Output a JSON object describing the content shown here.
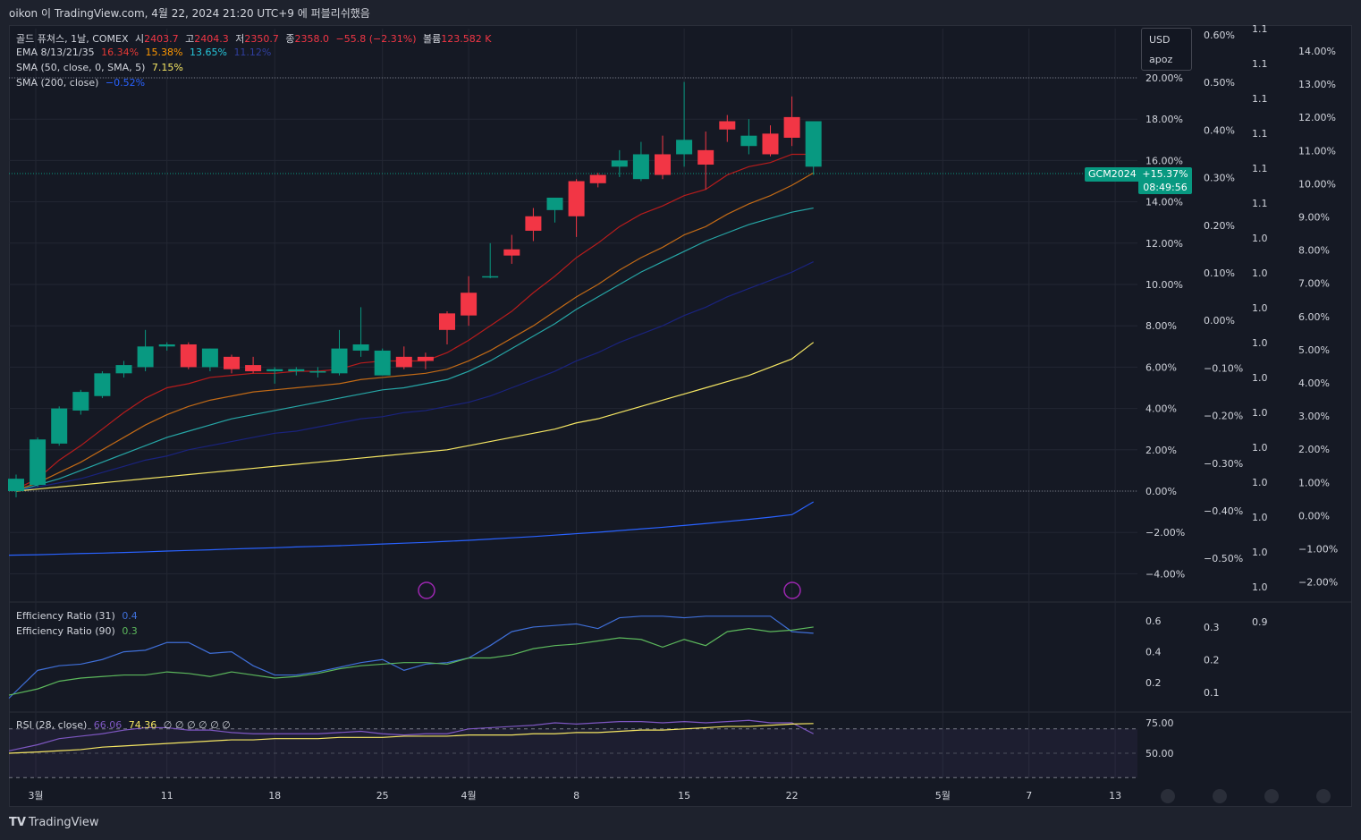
{
  "header": {
    "author_line": "oikon 이 TradingView.com, 4월 22, 2024 21:20 UTC+9 에 퍼블리쉬했음"
  },
  "legend": {
    "symbol": "골드 퓨쳐스, 1날, COMEX",
    "o_label": "시",
    "o": "2403.7",
    "h_label": "고",
    "h": "2404.3",
    "l_label": "저",
    "l": "2350.7",
    "c_label": "종",
    "c": "2358.0",
    "chg": "−55.8 (−2.31%)",
    "vol_label": "볼륨",
    "vol": "123.582 K",
    "ema_label": "EMA 8/13/21/35",
    "ema_vals": [
      "16.34%",
      "15.38%",
      "13.65%",
      "11.12%"
    ],
    "sma50_label": "SMA (50, close, 0, SMA, 5)",
    "sma50_val": "7.15%",
    "sma200_label": "SMA (200, close)",
    "sma200_val": "−0.52%",
    "er31_label": "Efficiency Ratio (31)",
    "er31_val": "0.4",
    "er90_label": "Efficiency Ratio (90)",
    "er90_val": "0.3",
    "rsi_label": "RSI (28, close)",
    "rsi_val": "66.06",
    "rsi_ma": "74.36",
    "rsi_extra": "∅ ∅ ∅ ∅ ∅ ∅"
  },
  "currency_box": {
    "currency": "USD",
    "name": "apoz"
  },
  "price_tag": {
    "symbol": "GCM2024",
    "value": "+15.37%",
    "countdown": "08:49:56"
  },
  "colors": {
    "up": "#089981",
    "down": "#f23645",
    "ema8": "#b71c1c",
    "ema13": "#c26a16",
    "ema21": "#26a6a6",
    "ema35": "#1a237e",
    "sma50": "#f5e663",
    "sma200": "#2962ff",
    "er31": "#3f6fd8",
    "er90": "#5cb85c",
    "rsi": "#7e57c2",
    "rsi_ma": "#f5e663"
  },
  "bottom": {
    "logo": "TradingView"
  },
  "chart_data": [
    {
      "type": "candlestick",
      "title": "골드 퓨쳐스, 1날, COMEX",
      "x_ticks": [
        "3월",
        "11",
        "18",
        "25",
        "4월",
        "8",
        "15",
        "22",
        "5월",
        "7",
        "13"
      ],
      "right_axis_1": [
        "20.00%",
        "18.00%",
        "16.00%",
        "14.00%",
        "12.00%",
        "10.00%",
        "8.00%",
        "6.00%",
        "4.00%",
        "2.00%",
        "0.00%",
        "−2.00%",
        "−4.00%"
      ],
      "right_axis_2": [
        "0.60%",
        "0.50%",
        "0.40%",
        "0.30%",
        "0.20%",
        "0.10%",
        "0.00%",
        "−0.10%",
        "−0.20%",
        "−0.30%",
        "−0.40%",
        "−0.50%"
      ],
      "right_axis_3": [
        "1.1",
        "1.1",
        "1.1",
        "1.1",
        "1.1",
        "1.1",
        "1.0",
        "1.0",
        "1.0",
        "1.0",
        "1.0",
        "1.0",
        "1.0",
        "1.0",
        "1.0",
        "1.0",
        "1.0",
        "0.9"
      ],
      "right_axis_4": [
        "14.00%",
        "13.00%",
        "12.00%",
        "11.00%",
        "10.00%",
        "9.00%",
        "8.00%",
        "7.00%",
        "6.00%",
        "5.00%",
        "4.00%",
        "3.00%",
        "2.00%",
        "1.00%",
        "0.00%",
        "−1.00%",
        "−2.00%"
      ],
      "ylim": [
        -4.5,
        21
      ],
      "candles": [
        {
          "o": 0.0,
          "h": 0.8,
          "l": -0.3,
          "c": 0.6
        },
        {
          "o": 0.3,
          "h": 2.6,
          "l": 0.2,
          "c": 2.5
        },
        {
          "o": 2.3,
          "h": 4.1,
          "l": 2.2,
          "c": 4.0
        },
        {
          "o": 3.9,
          "h": 4.9,
          "l": 3.7,
          "c": 4.8
        },
        {
          "o": 4.6,
          "h": 5.8,
          "l": 4.5,
          "c": 5.7
        },
        {
          "o": 5.7,
          "h": 6.3,
          "l": 5.5,
          "c": 6.1
        },
        {
          "o": 6.0,
          "h": 7.8,
          "l": 5.8,
          "c": 7.0
        },
        {
          "o": 7.0,
          "h": 7.2,
          "l": 6.8,
          "c": 7.1
        },
        {
          "o": 7.1,
          "h": 7.2,
          "l": 5.9,
          "c": 6.0
        },
        {
          "o": 6.0,
          "h": 6.9,
          "l": 5.8,
          "c": 6.9
        },
        {
          "o": 6.5,
          "h": 6.6,
          "l": 5.7,
          "c": 5.9
        },
        {
          "o": 6.1,
          "h": 6.5,
          "l": 5.7,
          "c": 5.8
        },
        {
          "o": 5.8,
          "h": 6.0,
          "l": 5.2,
          "c": 5.9
        },
        {
          "o": 5.8,
          "h": 6.0,
          "l": 5.6,
          "c": 5.9
        },
        {
          "o": 5.8,
          "h": 6.0,
          "l": 5.5,
          "c": 5.8
        },
        {
          "o": 5.7,
          "h": 7.8,
          "l": 5.6,
          "c": 6.9
        },
        {
          "o": 6.8,
          "h": 8.9,
          "l": 6.5,
          "c": 7.1
        },
        {
          "o": 5.6,
          "h": 6.9,
          "l": 5.6,
          "c": 6.8
        },
        {
          "o": 6.5,
          "h": 7.0,
          "l": 5.9,
          "c": 6.0
        },
        {
          "o": 6.5,
          "h": 6.7,
          "l": 5.9,
          "c": 6.3
        },
        {
          "o": 8.6,
          "h": 8.7,
          "l": 7.1,
          "c": 7.8
        },
        {
          "o": 9.6,
          "h": 10.4,
          "l": 8.0,
          "c": 8.5
        },
        {
          "o": 10.4,
          "h": 12.0,
          "l": 10.3,
          "c": 10.4
        },
        {
          "o": 11.7,
          "h": 12.4,
          "l": 11.0,
          "c": 11.4
        },
        {
          "o": 13.3,
          "h": 13.7,
          "l": 12.1,
          "c": 12.6
        },
        {
          "o": 13.6,
          "h": 14.1,
          "l": 13.0,
          "c": 14.2
        },
        {
          "o": 15.0,
          "h": 15.1,
          "l": 12.3,
          "c": 13.3
        },
        {
          "o": 15.3,
          "h": 15.4,
          "l": 14.7,
          "c": 14.9
        },
        {
          "o": 15.7,
          "h": 16.5,
          "l": 15.2,
          "c": 16.0
        },
        {
          "o": 15.1,
          "h": 16.9,
          "l": 15.0,
          "c": 16.3
        },
        {
          "o": 16.3,
          "h": 17.2,
          "l": 15.1,
          "c": 15.3
        },
        {
          "o": 16.3,
          "h": 19.8,
          "l": 15.7,
          "c": 17.0
        },
        {
          "o": 16.5,
          "h": 17.4,
          "l": 14.6,
          "c": 15.8
        },
        {
          "o": 17.9,
          "h": 18.2,
          "l": 16.9,
          "c": 17.5
        },
        {
          "o": 16.7,
          "h": 18.0,
          "l": 16.3,
          "c": 17.2
        },
        {
          "o": 17.3,
          "h": 17.7,
          "l": 16.2,
          "c": 16.3
        },
        {
          "o": 18.1,
          "h": 19.1,
          "l": 16.7,
          "c": 17.1
        },
        {
          "o": 15.7,
          "h": 17.8,
          "l": 15.3,
          "c": 17.9
        }
      ],
      "series": [
        {
          "name": "EMA 8",
          "values": [
            0.1,
            0.6,
            1.5,
            2.2,
            3.0,
            3.8,
            4.5,
            5.0,
            5.2,
            5.5,
            5.6,
            5.7,
            5.7,
            5.8,
            5.8,
            5.9,
            6.2,
            6.3,
            6.3,
            6.3,
            6.7,
            7.3,
            8.0,
            8.7,
            9.6,
            10.4,
            11.3,
            12.0,
            12.8,
            13.4,
            13.8,
            14.3,
            14.6,
            15.3,
            15.7,
            15.9,
            16.3,
            16.3
          ]
        },
        {
          "name": "EMA 13",
          "values": [
            0.05,
            0.4,
            0.9,
            1.4,
            2.0,
            2.6,
            3.2,
            3.7,
            4.1,
            4.4,
            4.6,
            4.8,
            4.9,
            5.0,
            5.1,
            5.2,
            5.4,
            5.5,
            5.6,
            5.7,
            5.9,
            6.3,
            6.8,
            7.4,
            8.0,
            8.7,
            9.4,
            10.0,
            10.7,
            11.3,
            11.8,
            12.4,
            12.8,
            13.4,
            13.9,
            14.3,
            14.8,
            15.4
          ]
        },
        {
          "name": "EMA 21",
          "values": [
            0.0,
            0.3,
            0.6,
            1.0,
            1.4,
            1.8,
            2.2,
            2.6,
            2.9,
            3.2,
            3.5,
            3.7,
            3.9,
            4.1,
            4.3,
            4.5,
            4.7,
            4.9,
            5.0,
            5.2,
            5.4,
            5.8,
            6.3,
            6.9,
            7.5,
            8.1,
            8.8,
            9.4,
            10.0,
            10.6,
            11.1,
            11.6,
            12.1,
            12.5,
            12.9,
            13.2,
            13.5,
            13.7
          ]
        },
        {
          "name": "EMA 35",
          "values": [
            0.0,
            0.2,
            0.4,
            0.6,
            0.9,
            1.2,
            1.5,
            1.7,
            2.0,
            2.2,
            2.4,
            2.6,
            2.8,
            2.9,
            3.1,
            3.3,
            3.5,
            3.6,
            3.8,
            3.9,
            4.1,
            4.3,
            4.6,
            5.0,
            5.4,
            5.8,
            6.3,
            6.7,
            7.2,
            7.6,
            8.0,
            8.5,
            8.9,
            9.4,
            9.8,
            10.2,
            10.6,
            11.1
          ]
        },
        {
          "name": "SMA 50",
          "values": [
            0.0,
            0.1,
            0.2,
            0.3,
            0.4,
            0.5,
            0.6,
            0.7,
            0.8,
            0.9,
            1.0,
            1.1,
            1.2,
            1.3,
            1.4,
            1.5,
            1.6,
            1.7,
            1.8,
            1.9,
            2.0,
            2.2,
            2.4,
            2.6,
            2.8,
            3.0,
            3.3,
            3.5,
            3.8,
            4.1,
            4.4,
            4.7,
            5.0,
            5.3,
            5.6,
            6.0,
            6.4,
            7.2
          ]
        },
        {
          "name": "SMA 200",
          "values": [
            -3.1,
            -3.08,
            -3.05,
            -3.02,
            -3.0,
            -2.97,
            -2.94,
            -2.9,
            -2.87,
            -2.84,
            -2.8,
            -2.77,
            -2.74,
            -2.7,
            -2.67,
            -2.64,
            -2.6,
            -2.56,
            -2.52,
            -2.48,
            -2.43,
            -2.38,
            -2.32,
            -2.26,
            -2.2,
            -2.13,
            -2.06,
            -1.99,
            -1.91,
            -1.83,
            -1.75,
            -1.66,
            -1.57,
            -1.47,
            -1.37,
            -1.26,
            -1.14,
            -0.52
          ]
        }
      ]
    },
    {
      "type": "line",
      "title": "Efficiency Ratio",
      "y_ticks": [
        "0.6",
        "0.4",
        "0.2"
      ],
      "y_ticks_right": [
        "0.3",
        "0.2",
        "0.1"
      ],
      "ylim": [
        0.08,
        0.68
      ],
      "series": [
        {
          "name": "Efficiency Ratio (31)",
          "values": [
            0.1,
            0.28,
            0.31,
            0.32,
            0.35,
            0.4,
            0.41,
            0.46,
            0.46,
            0.39,
            0.4,
            0.31,
            0.25,
            0.25,
            0.27,
            0.3,
            0.33,
            0.35,
            0.28,
            0.32,
            0.33,
            0.36,
            0.44,
            0.53,
            0.56,
            0.57,
            0.58,
            0.55,
            0.62,
            0.63,
            0.63,
            0.62,
            0.63,
            0.63,
            0.63,
            0.63,
            0.53,
            0.52
          ]
        },
        {
          "name": "Efficiency Ratio (90)",
          "values": [
            0.12,
            0.16,
            0.21,
            0.23,
            0.24,
            0.25,
            0.25,
            0.27,
            0.26,
            0.24,
            0.27,
            0.25,
            0.23,
            0.24,
            0.26,
            0.29,
            0.31,
            0.32,
            0.33,
            0.33,
            0.32,
            0.36,
            0.36,
            0.38,
            0.42,
            0.44,
            0.45,
            0.47,
            0.49,
            0.48,
            0.43,
            0.48,
            0.44,
            0.53,
            0.55,
            0.53,
            0.54,
            0.56
          ]
        }
      ]
    },
    {
      "type": "line",
      "title": "RSI (28, close)",
      "y_ticks": [
        "75.00",
        "50.00"
      ],
      "ylim": [
        30,
        85
      ],
      "series": [
        {
          "name": "RSI",
          "values": [
            52,
            57,
            62,
            64,
            66,
            69,
            71,
            71,
            69,
            69,
            67,
            66,
            66,
            66,
            66,
            67,
            68,
            66,
            65,
            66,
            66,
            70,
            71,
            72,
            73,
            75,
            74,
            75,
            76,
            76,
            75,
            76,
            75,
            76,
            77,
            75,
            75,
            66
          ]
        },
        {
          "name": "RSI MA",
          "values": [
            50,
            51,
            52,
            53,
            55,
            56,
            57,
            58,
            59,
            60,
            61,
            61,
            62,
            62,
            62,
            63,
            63,
            63,
            64,
            64,
            64,
            65,
            65,
            65,
            66,
            66,
            67,
            67,
            68,
            69,
            69,
            70,
            71,
            72,
            72,
            73,
            74,
            74.4
          ]
        }
      ]
    }
  ]
}
